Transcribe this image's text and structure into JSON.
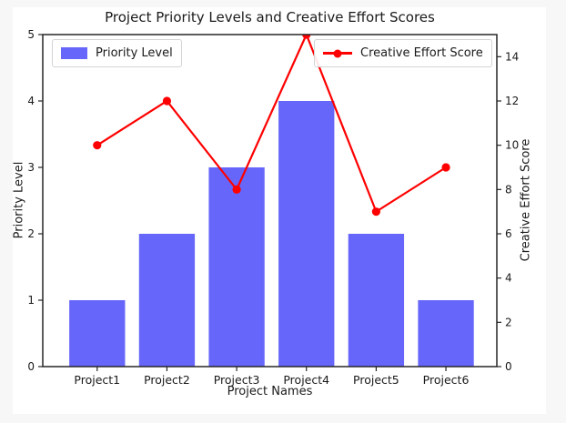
{
  "page": {
    "background": "#f7f7f8",
    "figure_background": "#ffffff"
  },
  "chart_data": {
    "type": "bar+line",
    "title": "Project Priority Levels and Creative Effort Scores",
    "xlabel": "Project Names",
    "categories": [
      "Project1",
      "Project2",
      "Project3",
      "Project4",
      "Project5",
      "Project6"
    ],
    "series": [
      {
        "name": "Priority Level",
        "type": "bar",
        "axis": "left",
        "color": "#6666fa",
        "values": [
          1,
          2,
          3,
          4,
          2,
          1
        ]
      },
      {
        "name": "Creative Effort Score",
        "type": "line",
        "axis": "right",
        "color": "#ff0000",
        "marker": "circle",
        "values": [
          10,
          12,
          8,
          15,
          7,
          9
        ]
      }
    ],
    "left_axis": {
      "label": "Priority Level",
      "min": 0,
      "max": 5,
      "ticks": [
        0,
        1,
        2,
        3,
        4,
        5
      ]
    },
    "right_axis": {
      "label": "Creative Effort Score",
      "min": 0,
      "max": 15,
      "ticks": [
        0,
        2,
        4,
        6,
        8,
        10,
        12,
        14
      ]
    },
    "grid": false,
    "legend_positions": [
      "upper left",
      "upper right"
    ],
    "spine_color": "#262626",
    "text_color": "#1a1a1a"
  }
}
